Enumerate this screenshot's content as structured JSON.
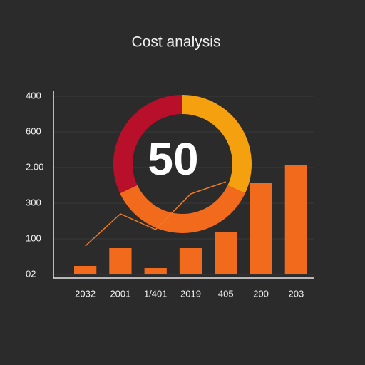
{
  "chart_data": [
    {
      "type": "bar",
      "title": "Cost analysis",
      "categories": [
        "2032",
        "2001",
        "1/401",
        "2019",
        "405",
        "200",
        "203"
      ],
      "series": [
        {
          "type": "bar",
          "color": "#f26a1b",
          "values": [
            0.24,
            0.74,
            0.18,
            0.74,
            1.18,
            2.58,
            3.06
          ]
        },
        {
          "type": "line",
          "color": "#f07a22",
          "values": [
            0.8,
            1.7,
            1.26,
            2.26,
            2.6,
            null,
            null
          ]
        }
      ],
      "ylim": [
        -0.1,
        5.14
      ],
      "yticks": [
        {
          "value": 0,
          "label": "02"
        },
        {
          "value": 1,
          "label": "100"
        },
        {
          "value": 2,
          "label": "300"
        },
        {
          "value": 3,
          "label": "2.00"
        },
        {
          "value": 4,
          "label": "600"
        },
        {
          "value": 5,
          "label": "400"
        }
      ],
      "grid": true
    },
    {
      "type": "donut",
      "center_label": "50",
      "values": [
        32,
        36,
        32
      ],
      "colors": [
        "#f5a00f",
        "#f26a1b",
        "#b8102a"
      ]
    }
  ]
}
